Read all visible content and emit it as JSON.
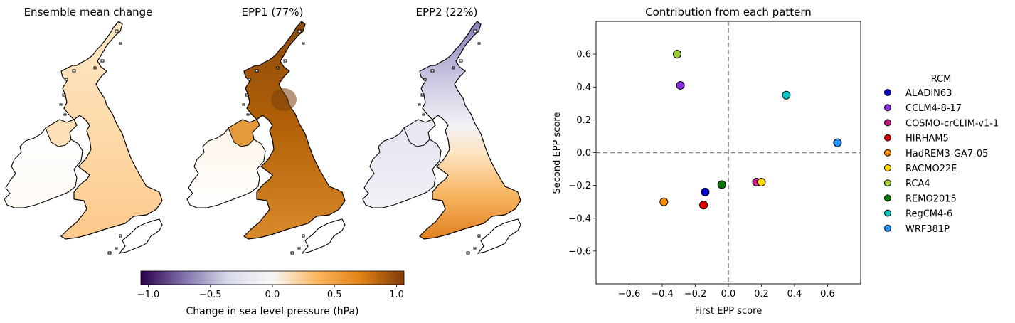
{
  "maps": [
    {
      "title": "Ensemble mean change",
      "pattern": "mean"
    },
    {
      "title": "EPP1 (77%)",
      "pattern": "epp1"
    },
    {
      "title": "EPP2 (22%)",
      "pattern": "epp2"
    }
  ],
  "colorbar": {
    "label": "Change in sea level pressure (hPa)",
    "ticks": [
      -1.0,
      -0.5,
      0.0,
      0.5,
      1.0
    ],
    "tick_labels": [
      "−1.0",
      "−0.5",
      "0.0",
      "0.5",
      "1.0"
    ],
    "range": [
      -1.06,
      1.06
    ],
    "colors": [
      "#2d004b",
      "#8073ac",
      "#d8daeb",
      "#f7f7f7",
      "#fdb863",
      "#e08214",
      "#7f3b08"
    ]
  },
  "chart_data": {
    "type": "scatter",
    "title": "Contribution from each pattern",
    "xlabel": "First EPP score",
    "ylabel": "Second EPP score",
    "xlim": [
      -0.8,
      0.8
    ],
    "ylim": [
      -0.8,
      0.8
    ],
    "xticks": [
      -0.6,
      -0.4,
      -0.2,
      0.0,
      0.2,
      0.4,
      0.6
    ],
    "yticks": [
      -0.6,
      -0.4,
      -0.2,
      0.0,
      0.2,
      0.4,
      0.6
    ],
    "xtick_labels": [
      "−0.6",
      "−0.4",
      "−0.2",
      "0.0",
      "0.2",
      "0.4",
      "0.6"
    ],
    "ytick_labels": [
      "−0.6",
      "−0.4",
      "−0.2",
      "0.0",
      "0.2",
      "0.4",
      "0.6"
    ],
    "reference_lines": {
      "x": 0,
      "y": 0,
      "style": "dashed",
      "color": "#808080"
    },
    "grid": false,
    "legend": {
      "title": "RCM",
      "placement": "right-outside"
    },
    "series": [
      {
        "name": "ALADIN63",
        "color": "#0000c8",
        "x": -0.14,
        "y": -0.24
      },
      {
        "name": "CCLM4-8-17",
        "color": "#8a2be2",
        "x": -0.29,
        "y": 0.41
      },
      {
        "name": "COSMO-crCLIM-v1-1",
        "color": "#c71585",
        "x": 0.17,
        "y": -0.18
      },
      {
        "name": "HIRHAM5",
        "color": "#e00000",
        "x": -0.15,
        "y": -0.32
      },
      {
        "name": "HadREM3-GA7-05",
        "color": "#ff8c00",
        "x": -0.39,
        "y": -0.3
      },
      {
        "name": "RACMO22E",
        "color": "#ffd700",
        "x": 0.2,
        "y": -0.18
      },
      {
        "name": "RCA4",
        "color": "#9acd32",
        "x": -0.31,
        "y": 0.6
      },
      {
        "name": "REMO2015",
        "color": "#007800",
        "x": -0.04,
        "y": -0.195
      },
      {
        "name": "RegCM4-6",
        "color": "#00c8c8",
        "x": 0.35,
        "y": 0.35
      },
      {
        "name": "WRF381P",
        "color": "#1e90ff",
        "x": 0.66,
        "y": 0.06
      }
    ]
  }
}
